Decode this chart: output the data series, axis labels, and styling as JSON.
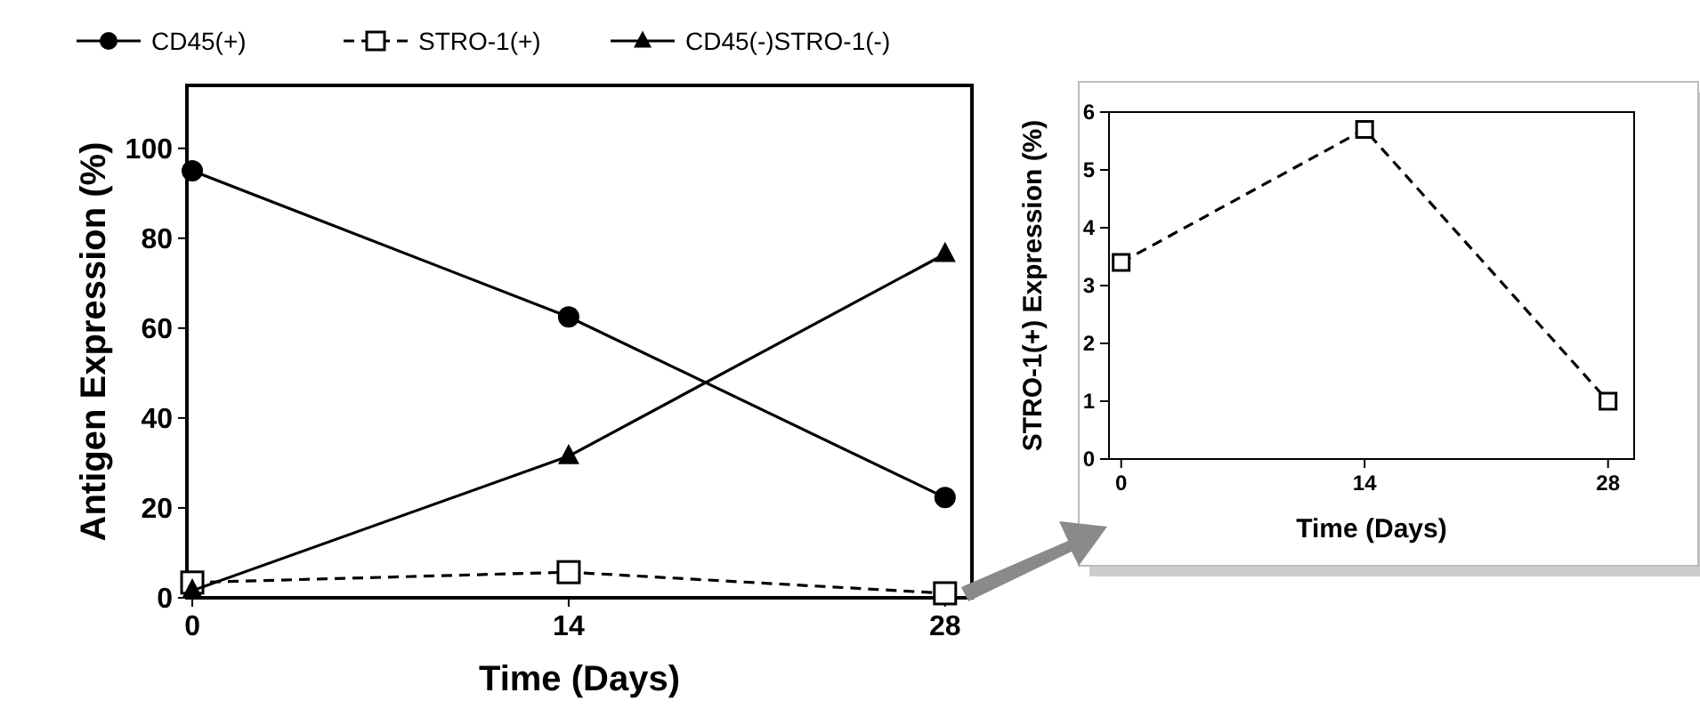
{
  "chart_data": [
    {
      "type": "line",
      "xlabel": "Time (Days)",
      "ylabel": "Antigen Expression (%)",
      "x": [
        0,
        14,
        28
      ],
      "xlim": [
        -0.2,
        29
      ],
      "xticks": [
        0,
        14,
        28
      ],
      "ylim": [
        0,
        114
      ],
      "yticks": [
        0,
        20,
        40,
        60,
        80,
        100
      ],
      "legend": "top",
      "series": [
        {
          "name": "CD45(+)",
          "color": "#000000",
          "values": [
            95,
            62.5,
            22.3
          ],
          "marker": "circle",
          "line_style": "solid"
        },
        {
          "name": "STRO-1(+)",
          "color": "#000000",
          "values": [
            3.4,
            5.7,
            1.0
          ],
          "marker": "square",
          "line_style": "dashed"
        },
        {
          "name": "CD45(-)STRO-1(-)",
          "color": "#000000",
          "values": [
            1.6,
            31.5,
            76.5
          ],
          "marker": "triangle",
          "line_style": "solid"
        }
      ]
    },
    {
      "type": "line",
      "xlabel": "Time (Days)",
      "ylabel": "STRO-1(+) Expression (%)",
      "x": [
        0,
        14,
        28
      ],
      "xlim": [
        -0.7,
        29.5
      ],
      "xticks": [
        0,
        14,
        28
      ],
      "ylim": [
        0,
        6
      ],
      "yticks": [
        0,
        1,
        2,
        3,
        4,
        5,
        6
      ],
      "series": [
        {
          "color": "#000000",
          "values": [
            3.4,
            5.7,
            1.0
          ],
          "marker": "square",
          "line_style": "dashed"
        }
      ]
    }
  ]
}
